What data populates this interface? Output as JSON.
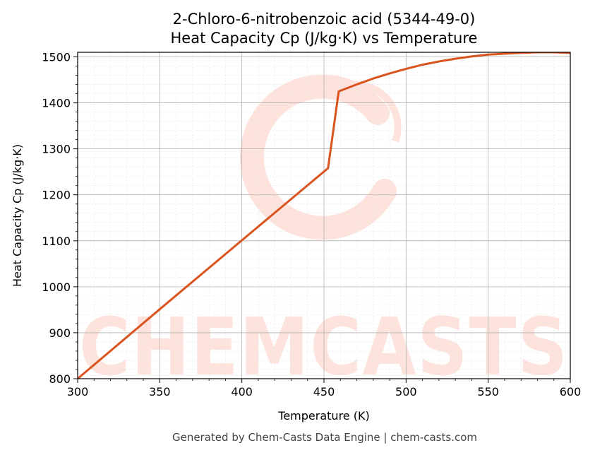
{
  "page": {
    "title_line1": "2-Chloro-6-nitrobenzoic acid (5344-49-0)",
    "title_line2": "Heat Capacity Cp (J/kg·K) vs Temperature",
    "footer": "Generated by Chem-Casts Data Engine | chem-casts.com",
    "watermark": "CHEMCASTS"
  },
  "chart_data": {
    "type": "line",
    "title": "2-Chloro-6-nitrobenzoic acid (5344-49-0)\nHeat Capacity Cp (J/kg·K) vs Temperature",
    "xlabel": "Temperature (K)",
    "ylabel": "Heat Capacity Cp (J/kg·K)",
    "xlim": [
      300,
      600
    ],
    "ylim": [
      800,
      1510
    ],
    "x_ticks": [
      300,
      350,
      400,
      450,
      500,
      550,
      600
    ],
    "y_ticks": [
      800,
      900,
      1000,
      1100,
      1200,
      1300,
      1400,
      1500
    ],
    "grid": true,
    "line_color": "#d9541e",
    "series": [
      {
        "x": [
          300,
          350,
          400,
          452.5,
          459,
          470,
          480,
          490,
          500,
          510,
          520,
          530,
          540,
          550,
          560,
          570,
          580,
          590,
          600
        ],
        "values": [
          800,
          951,
          1101,
          1258,
          1425,
          1440,
          1453,
          1464,
          1474,
          1483,
          1490,
          1496,
          1501,
          1505,
          1507,
          1509,
          1510,
          1510,
          1509
        ]
      }
    ]
  }
}
